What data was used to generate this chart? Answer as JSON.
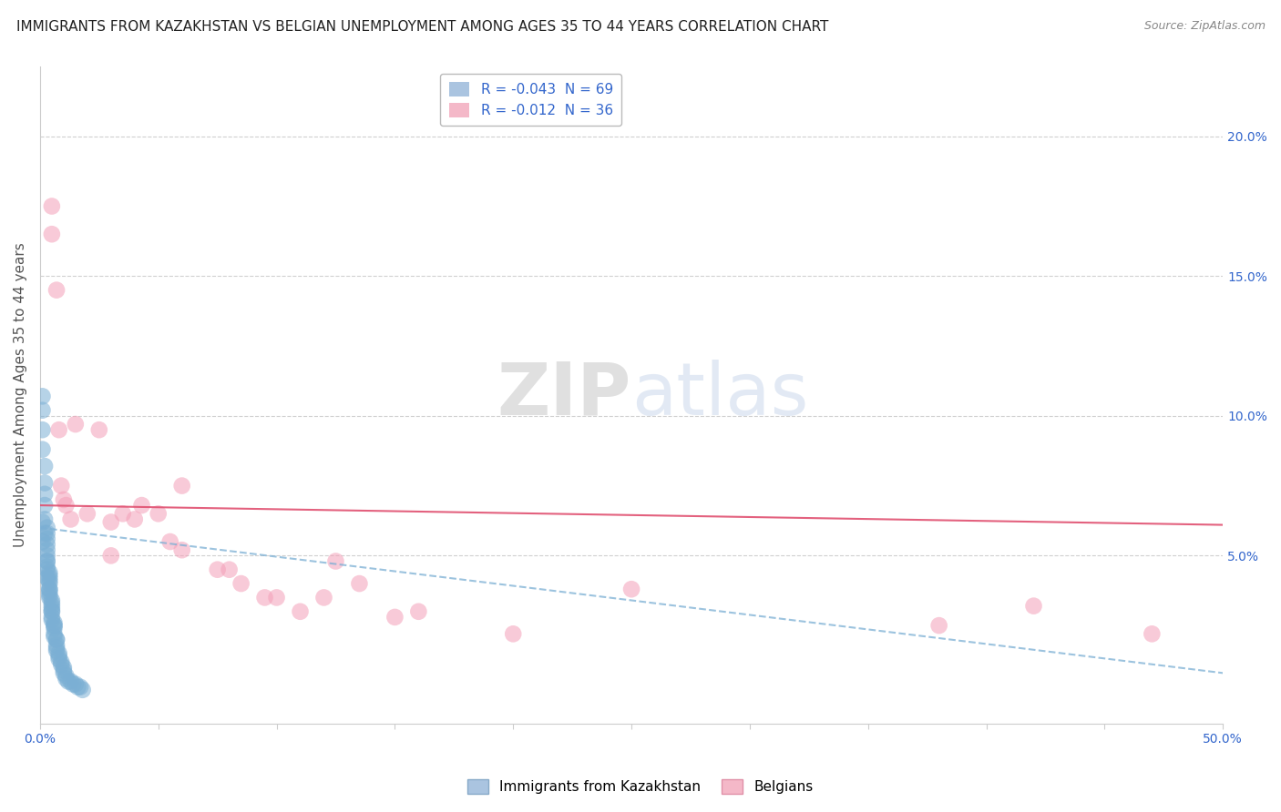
{
  "title": "IMMIGRANTS FROM KAZAKHSTAN VS BELGIAN UNEMPLOYMENT AMONG AGES 35 TO 44 YEARS CORRELATION CHART",
  "source": "Source: ZipAtlas.com",
  "ylabel": "Unemployment Among Ages 35 to 44 years",
  "ylabel_right_ticks": [
    "20.0%",
    "15.0%",
    "10.0%",
    "5.0%"
  ],
  "ylabel_right_vals": [
    0.2,
    0.15,
    0.1,
    0.05
  ],
  "xlim": [
    0.0,
    0.5
  ],
  "ylim": [
    -0.01,
    0.225
  ],
  "legend_label_blue": "R = -0.043  N = 69",
  "legend_label_pink": "R = -0.012  N = 36",
  "legend_label1": "Immigrants from Kazakhstan",
  "legend_label2": "Belgians",
  "blue_x": [
    0.001,
    0.001,
    0.001,
    0.001,
    0.002,
    0.002,
    0.002,
    0.002,
    0.002,
    0.003,
    0.003,
    0.003,
    0.003,
    0.003,
    0.003,
    0.003,
    0.003,
    0.003,
    0.004,
    0.004,
    0.004,
    0.004,
    0.004,
    0.004,
    0.004,
    0.004,
    0.004,
    0.005,
    0.005,
    0.005,
    0.005,
    0.005,
    0.005,
    0.005,
    0.006,
    0.006,
    0.006,
    0.006,
    0.006,
    0.007,
    0.007,
    0.007,
    0.007,
    0.008,
    0.008,
    0.008,
    0.009,
    0.009,
    0.01,
    0.01,
    0.01,
    0.011,
    0.011,
    0.012,
    0.013,
    0.014,
    0.015,
    0.016,
    0.017,
    0.018,
    0.001,
    0.001,
    0.002,
    0.003,
    0.003,
    0.004,
    0.005,
    0.006,
    0.007
  ],
  "blue_y": [
    0.107,
    0.102,
    0.095,
    0.088,
    0.082,
    0.076,
    0.072,
    0.068,
    0.063,
    0.06,
    0.058,
    0.056,
    0.054,
    0.052,
    0.05,
    0.048,
    0.046,
    0.045,
    0.044,
    0.043,
    0.042,
    0.041,
    0.04,
    0.038,
    0.037,
    0.036,
    0.035,
    0.034,
    0.033,
    0.032,
    0.031,
    0.03,
    0.028,
    0.027,
    0.026,
    0.025,
    0.024,
    0.022,
    0.021,
    0.02,
    0.018,
    0.017,
    0.016,
    0.015,
    0.014,
    0.013,
    0.012,
    0.011,
    0.01,
    0.009,
    0.008,
    0.007,
    0.006,
    0.005,
    0.005,
    0.004,
    0.004,
    0.003,
    0.003,
    0.002,
    0.062,
    0.055,
    0.058,
    0.048,
    0.042,
    0.038,
    0.03,
    0.025,
    0.02
  ],
  "pink_x": [
    0.005,
    0.005,
    0.007,
    0.008,
    0.009,
    0.01,
    0.011,
    0.013,
    0.015,
    0.02,
    0.025,
    0.03,
    0.035,
    0.04,
    0.043,
    0.05,
    0.055,
    0.06,
    0.075,
    0.08,
    0.085,
    0.095,
    0.1,
    0.11,
    0.12,
    0.125,
    0.135,
    0.15,
    0.16,
    0.2,
    0.25,
    0.38,
    0.42,
    0.47,
    0.06,
    0.03
  ],
  "pink_y": [
    0.175,
    0.165,
    0.145,
    0.095,
    0.075,
    0.07,
    0.068,
    0.063,
    0.097,
    0.065,
    0.095,
    0.062,
    0.065,
    0.063,
    0.068,
    0.065,
    0.055,
    0.052,
    0.045,
    0.045,
    0.04,
    0.035,
    0.035,
    0.03,
    0.035,
    0.048,
    0.04,
    0.028,
    0.03,
    0.022,
    0.038,
    0.025,
    0.032,
    0.022,
    0.075,
    0.05
  ],
  "blue_line_x": [
    0.0,
    0.5
  ],
  "blue_line_y": [
    0.06,
    0.008
  ],
  "pink_line_x": [
    0.0,
    0.5
  ],
  "pink_line_y": [
    0.068,
    0.061
  ],
  "dot_color_blue": "#7bafd4",
  "dot_color_pink": "#f4a0b8",
  "line_color_blue": "#7bafd4",
  "line_color_pink": "#e05070",
  "grid_color": "#d0d0d0",
  "background_color": "#ffffff",
  "title_fontsize": 11,
  "axis_tick_fontsize": 10,
  "ylabel_fontsize": 11,
  "source_fontsize": 9
}
